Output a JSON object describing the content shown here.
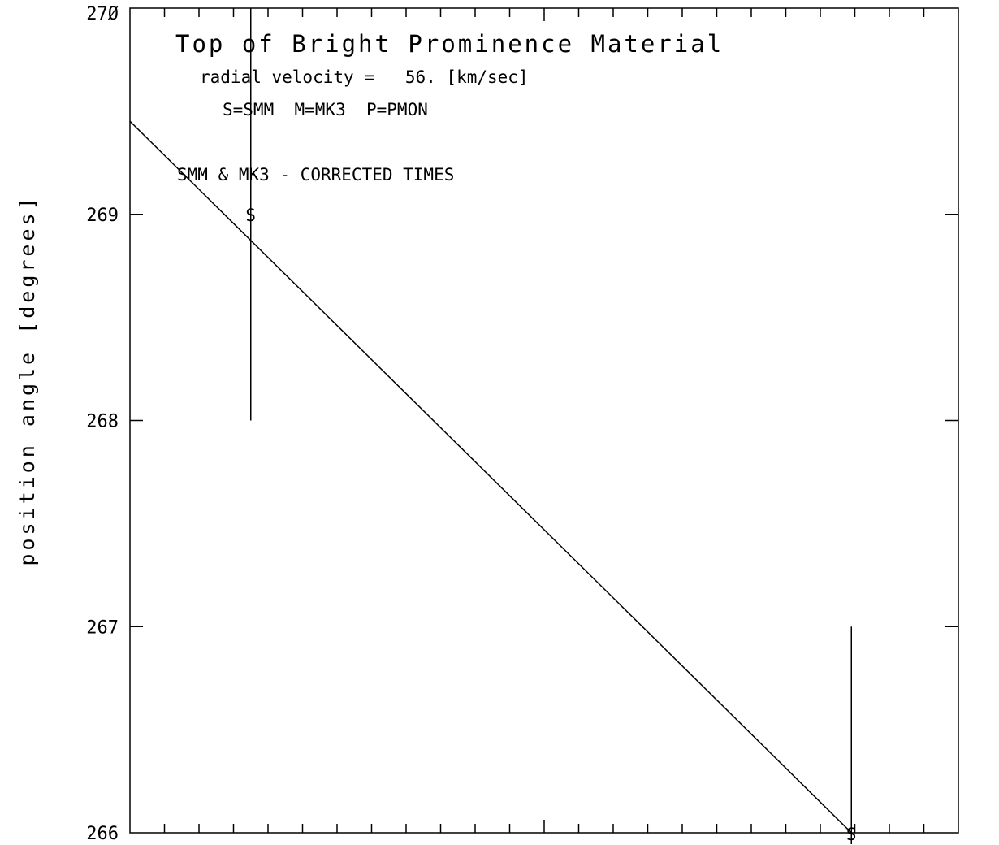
{
  "chart_data": {
    "type": "line",
    "title": "Top of Bright Prominence Material",
    "annotations": [
      "radial velocity =   56. [km/sec]",
      "S=SMM  M=MK3  P=PMON",
      "SMM & MK3 - CORRECTED TIMES"
    ],
    "ylabel": "position angle [degrees]",
    "xlabel": "",
    "ylim": [
      266,
      270
    ],
    "xlim": [
      0,
      24
    ],
    "y_ticks": [
      266,
      267,
      268,
      269,
      270
    ],
    "y_tick_labels": [
      "266",
      "267",
      "268",
      "269",
      "27Ø"
    ],
    "x_major_ticks": [
      12
    ],
    "x_minor_tick_step": 1,
    "grid": false,
    "series": [
      {
        "kind": "fit-line",
        "x": [
          -0.9,
          20.9
        ],
        "y": [
          269.6,
          266.0
        ]
      },
      {
        "kind": "points",
        "marker_label": "S",
        "points": [
          {
            "x": 3.5,
            "y": 269.0,
            "ylow": 268.0,
            "yhigh": 270.0
          },
          {
            "x": 20.9,
            "y": 266.0,
            "ylow": 266.0,
            "yhigh": 267.0
          }
        ]
      }
    ]
  }
}
